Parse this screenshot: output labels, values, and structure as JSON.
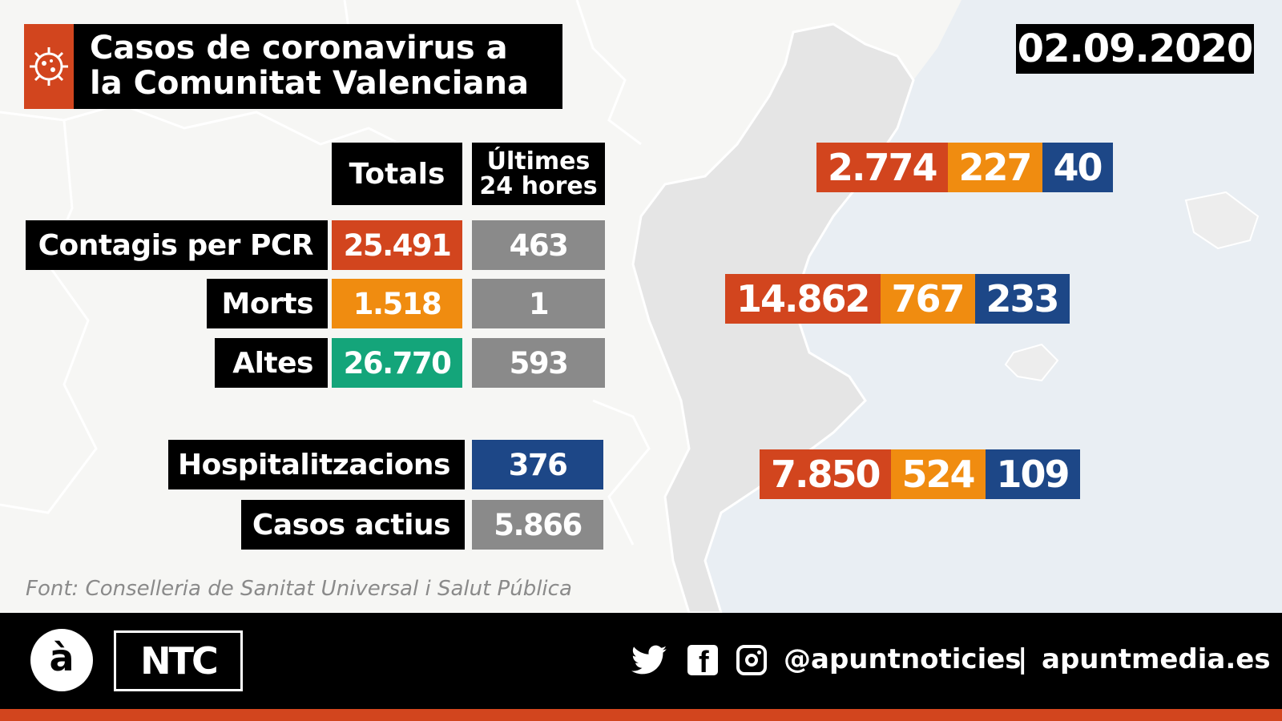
{
  "colors": {
    "red": "#d2451e",
    "orange": "#f08c10",
    "blue": "#1d4787",
    "green": "#14a57a",
    "gray": "#8a8a8a",
    "black": "#000000",
    "sea": "#e9eef3",
    "land": "#e6e6e6"
  },
  "title": {
    "line1": "Casos de coronavirus a",
    "line2": "la Comunitat Valenciana",
    "icon": "virus-icon"
  },
  "date": "02.09.2020",
  "table": {
    "headers": {
      "totals": "Totals",
      "last_line1": "Últimes",
      "last_line2": "24 hores"
    },
    "rows": [
      {
        "label": "Contagis per PCR",
        "total": "25.491",
        "last24": "463"
      },
      {
        "label": "Morts",
        "total": "1.518",
        "last24": "1"
      },
      {
        "label": "Altes",
        "total": "26.770",
        "last24": "593"
      }
    ],
    "extra": [
      {
        "label": "Hospitalitzacions",
        "value": "376"
      },
      {
        "label": "Casos actius",
        "value": "5.866"
      }
    ]
  },
  "provinces": [
    {
      "v1": "2.774",
      "v2": "227",
      "v3": "40"
    },
    {
      "v1": "14.862",
      "v2": "767",
      "v3": "233"
    },
    {
      "v1": "7.850",
      "v2": "524",
      "v3": "109"
    }
  ],
  "source": "Font: Conselleria de Sanitat Universal i Salut Pública",
  "footer": {
    "logo_letter": "à",
    "brand": "NTC",
    "handle": "@apuntnoticies",
    "separator": "|",
    "website": "apuntmedia.es",
    "icons": [
      "twitter-icon",
      "facebook-icon",
      "instagram-icon"
    ]
  }
}
